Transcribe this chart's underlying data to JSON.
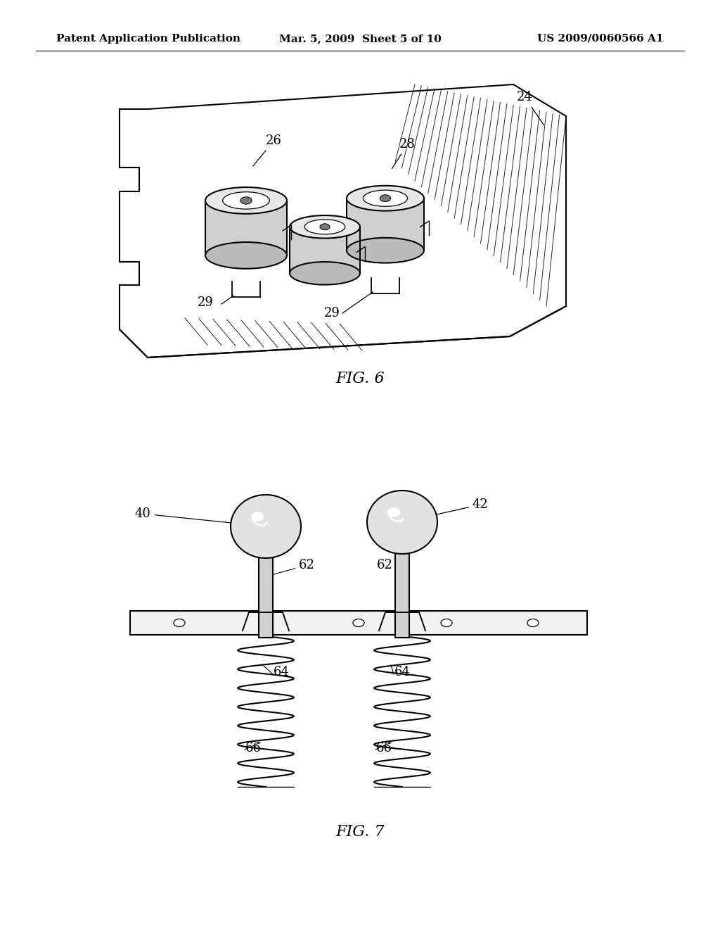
{
  "background_color": "#ffffff",
  "header_left": "Patent Application Publication",
  "header_mid": "Mar. 5, 2009  Sheet 5 of 10",
  "header_right": "US 2009/0060566 A1",
  "fig6_label": "FIG. 6",
  "fig7_label": "FIG. 7",
  "line_color": "#000000",
  "line_width": 1.5,
  "font_size_header": 11,
  "font_size_label": 14,
  "font_size_ref": 12
}
